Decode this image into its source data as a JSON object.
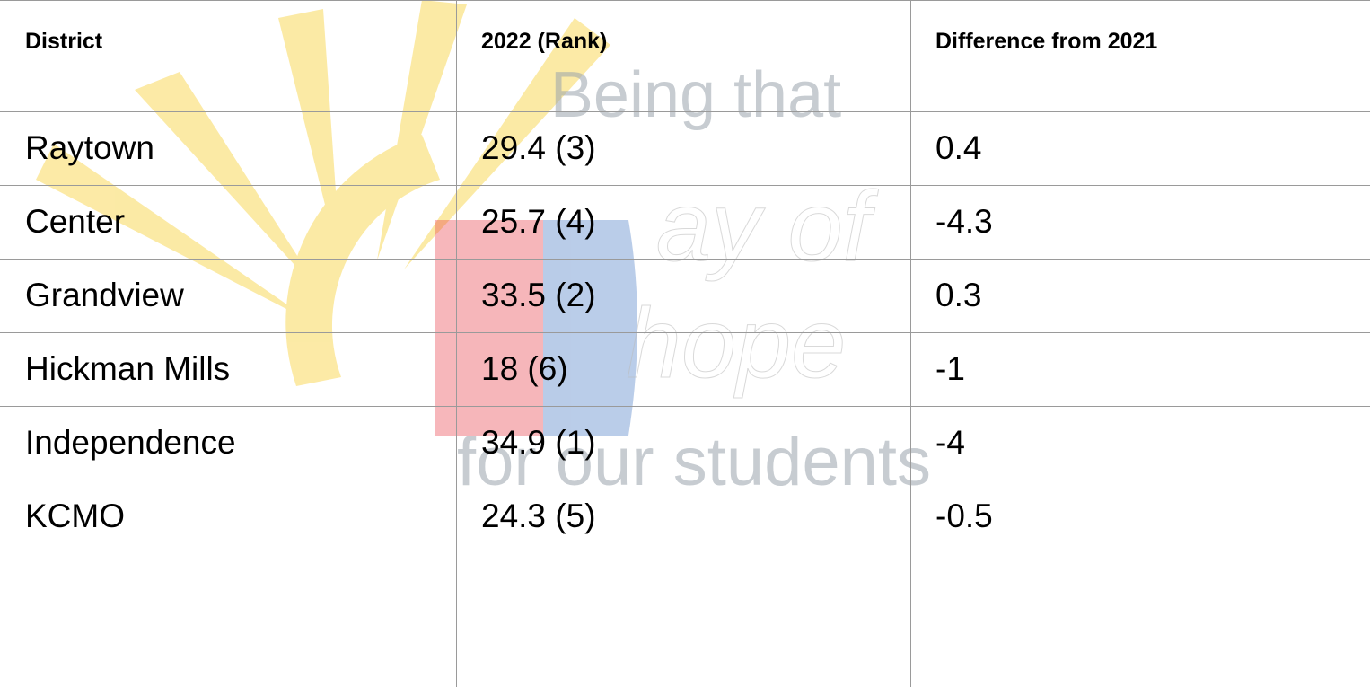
{
  "watermark": {
    "lines": [
      "Being that",
      "ay of",
      "hope",
      "for our students"
    ]
  },
  "table": {
    "header": [
      "District",
      "2022 (Rank)",
      "Difference from 2021"
    ],
    "rows": [
      [
        "Raytown",
        "29.4 (3)",
        "0.4"
      ],
      [
        "Center",
        "25.7 (4)",
        "-4.3"
      ],
      [
        "Grandview",
        "33.5 (2)",
        "0.3"
      ],
      [
        "Hickman Mills",
        "18 (6)",
        "-1"
      ],
      [
        "Independence",
        "34.9 (1)",
        "-4"
      ],
      [
        "KCMO",
        "24.3 (5)",
        "-0.5"
      ]
    ]
  }
}
